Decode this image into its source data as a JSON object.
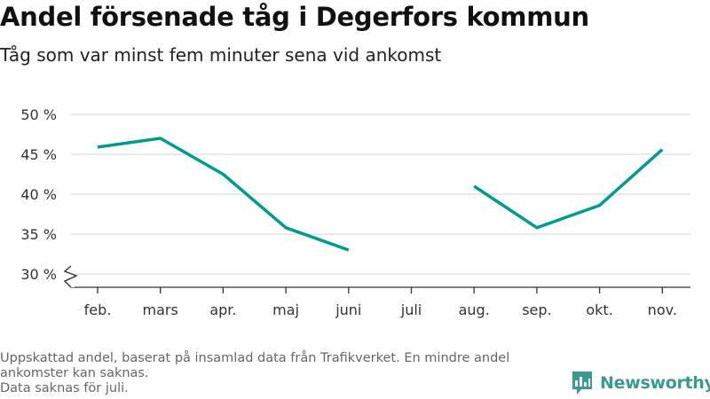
{
  "header": {
    "title": "Andel försenade tåg i Degerfors kommun",
    "subtitle": "Tåg som var minst fem minuter sena vid ankomst"
  },
  "footer": {
    "note1": "Uppskattad andel, baserat på insamlad data från Trafikverket. En mindre andel ankomster kan saknas.",
    "note2": "Data saknas för juli."
  },
  "brand": {
    "name": "Newsworthy",
    "color": "#3a9a8f"
  },
  "chart_data": {
    "type": "line",
    "categories": [
      "feb.",
      "mars",
      "apr.",
      "maj",
      "juni",
      "juli",
      "aug.",
      "sep.",
      "okt.",
      "nov."
    ],
    "series": [
      {
        "values": [
          45.9,
          47.0,
          42.5,
          35.8,
          33.0,
          null,
          41.0,
          35.8,
          38.6,
          45.6
        ]
      }
    ],
    "ylim": [
      30,
      50
    ],
    "yticks": [
      30,
      35,
      40,
      45,
      50
    ],
    "ytick_labels": [
      "30 %",
      "35 %",
      "40 %",
      "45 %",
      "50 %"
    ],
    "y_axis_break": true,
    "grid": true,
    "line_color": "#009b8f",
    "grid_color": "#dddddd"
  }
}
